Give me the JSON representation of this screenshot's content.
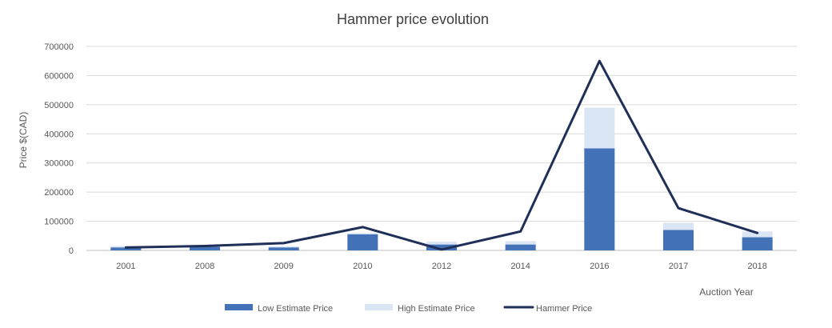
{
  "chart_data": {
    "type": "bar",
    "title": "Hammer price evolution",
    "xlabel": "Auction Year",
    "ylabel": "Price $(CAD)",
    "categories": [
      "2001",
      "2008",
      "2009",
      "2010",
      "2012",
      "2014",
      "2016",
      "2017",
      "2018"
    ],
    "ylim": [
      0,
      700000
    ],
    "yticks": [
      0,
      100000,
      200000,
      300000,
      400000,
      500000,
      600000,
      700000
    ],
    "ytick_labels": [
      "0",
      "100000",
      "200000",
      "300000",
      "400000",
      "500000",
      "600000",
      "700000"
    ],
    "grid": true,
    "legend_position": "bottom",
    "series": [
      {
        "name": "Low Estimate Price",
        "kind": "bar",
        "color": "#4472b8",
        "values": [
          10000,
          12000,
          10000,
          55000,
          20000,
          20000,
          350000,
          70000,
          45000
        ]
      },
      {
        "name": "High Estimate Price",
        "kind": "bar-overlay",
        "color": "#dbe6f4",
        "values": [
          15000,
          18000,
          14000,
          60000,
          30000,
          32000,
          490000,
          95000,
          65000
        ]
      },
      {
        "name": "Hammer Price",
        "kind": "line",
        "color": "#1f2f57",
        "values": [
          10000,
          15000,
          25000,
          80000,
          3000,
          65000,
          650000,
          145000,
          60000
        ]
      }
    ]
  }
}
